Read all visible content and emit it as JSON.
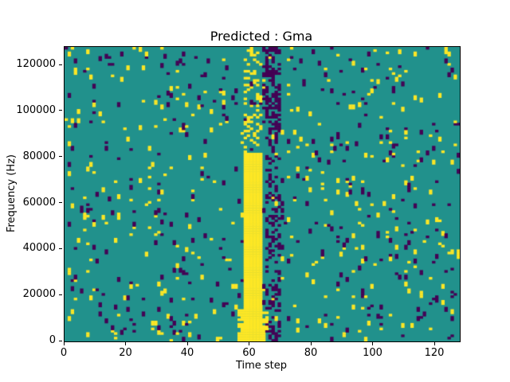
{
  "figure": {
    "background": "#ffffff"
  },
  "chart_data": {
    "type": "heatmap",
    "title": "Predicted : Gma",
    "xlabel": "Time step",
    "ylabel": "Frequency (Hz)",
    "x_range": [
      0,
      128
    ],
    "y_range": [
      0,
      128000
    ],
    "x_ticks": [
      0,
      20,
      40,
      60,
      80,
      100,
      120
    ],
    "y_ticks": [
      0,
      20000,
      40000,
      60000,
      80000,
      100000,
      120000
    ],
    "grid": {
      "cols": 128,
      "rows": 128,
      "hz_per_row": 1000
    },
    "legend": "off",
    "colormap": {
      "name": "viridis-ternary",
      "background_mid": "#21918c",
      "low": "#440154",
      "high": "#fde725"
    },
    "value_meaning": {
      "0": "background (teal)",
      "1": "low (dark purple)",
      "2": "high (yellow)"
    },
    "noise": {
      "seed": 1337,
      "low_density": 0.022,
      "high_density": 0.022,
      "vertical_extend_prob": 0.5
    },
    "features": [
      {
        "name": "solid-yellow-band",
        "col_start": 58,
        "col_end": 64,
        "row_start": 0,
        "row_end": 82,
        "value": 2,
        "density": 1.0
      },
      {
        "name": "yellow-band-base-widen",
        "col_start": 56,
        "col_end": 66,
        "row_start": 0,
        "row_end": 14,
        "value": 2,
        "density": 0.7
      },
      {
        "name": "yellow-speckle-above-band",
        "col_start": 58,
        "col_end": 64,
        "row_start": 82,
        "row_end": 128,
        "value": 2,
        "density": 0.25
      },
      {
        "name": "purple-dense-column",
        "col_start": 65,
        "col_end": 70,
        "row_start": 0,
        "row_end": 128,
        "value": 1,
        "density": 0.28
      },
      {
        "name": "purple-cluster-upper",
        "col_start": 64,
        "col_end": 70,
        "row_start": 90,
        "row_end": 128,
        "value": 1,
        "density": 0.35
      }
    ]
  }
}
